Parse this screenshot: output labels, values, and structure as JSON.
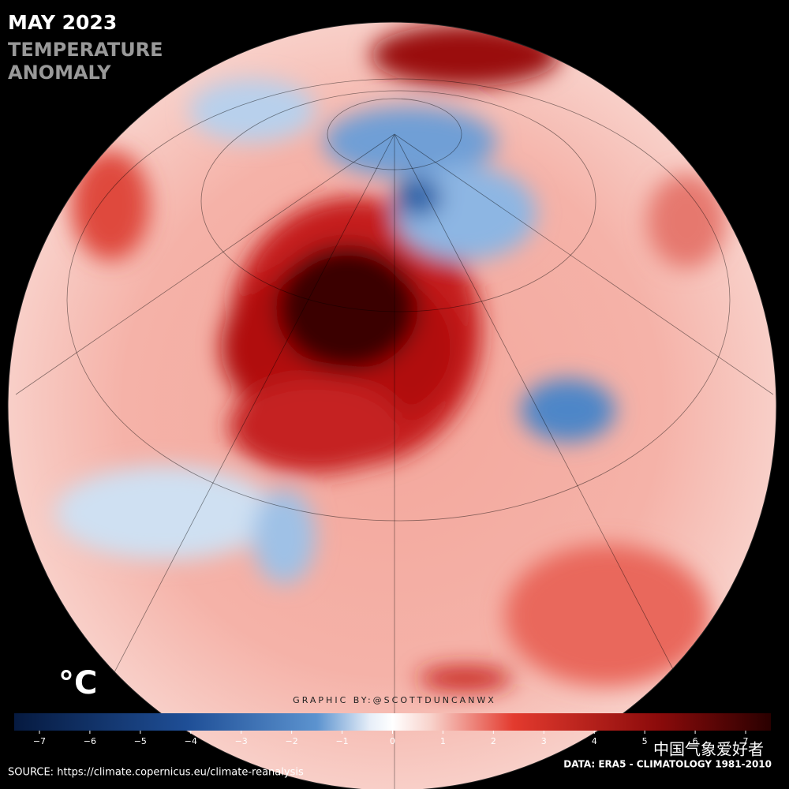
{
  "header": {
    "title": "MAY 2023",
    "subtitle_lines": [
      "TEMPERATURE",
      "ANOMALY"
    ]
  },
  "colorbar": {
    "unit": "°C",
    "lim": [
      -7.5,
      7.5
    ],
    "ticks": [
      {
        "value": -7,
        "label": "−7"
      },
      {
        "value": -6,
        "label": "−6"
      },
      {
        "value": -5,
        "label": "−5"
      },
      {
        "value": -4,
        "label": "−4"
      },
      {
        "value": -3,
        "label": "−3"
      },
      {
        "value": -2,
        "label": "−2"
      },
      {
        "value": -1,
        "label": "−1"
      },
      0,
      1,
      2,
      3,
      4,
      5,
      6,
      7
    ]
  },
  "credit": "GRAPHIC BY:@SCOTTDUNCANWX",
  "source": "SOURCE: https://climate.copernicus.eu/climate-reanalysis",
  "data_note": "DATA: ERA5 - CLIMATOLOGY 1981-2010",
  "watermark": "中国气象爱好者"
}
